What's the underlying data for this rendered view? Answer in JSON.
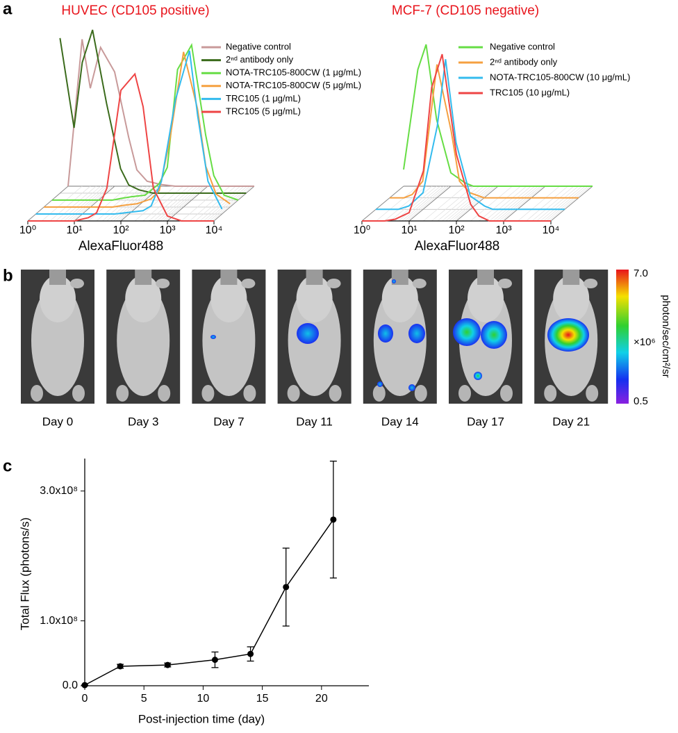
{
  "chart_data": [
    {
      "type": "waterfall",
      "panel": "a",
      "title": "HUVEC (CD105 positive)",
      "xlabel": "AlexaFluor488",
      "xscale": "log",
      "xlim": [
        1,
        10000
      ],
      "xticks": [
        {
          "value": 1,
          "label": "10⁰"
        },
        {
          "value": 10,
          "label": "10¹"
        },
        {
          "value": 100,
          "label": "10²"
        },
        {
          "value": 1000,
          "label": "10³"
        },
        {
          "value": 10000,
          "label": "10⁴"
        }
      ],
      "ylim": [
        0,
        100
      ],
      "x": [
        1,
        2,
        3,
        5,
        10,
        20,
        30,
        50,
        100,
        200,
        300,
        500,
        1000,
        2000,
        3000,
        5000,
        10000
      ],
      "series": [
        {
          "name": "Negative control",
          "color": "#c89a9a",
          "values": [
            0,
            90,
            60,
            85,
            70,
            30,
            10,
            3,
            1,
            0,
            0,
            0,
            0,
            0,
            0,
            0,
            0
          ]
        },
        {
          "name": "2ⁿᵈ antibody only",
          "color": "#3b6b1c",
          "values": [
            95,
            40,
            80,
            100,
            55,
            15,
            5,
            2,
            0,
            0,
            0,
            0,
            0,
            0,
            0,
            0,
            0
          ]
        },
        {
          "name": "NOTA-TRC105-800CW (1 μg/mL)",
          "color": "#66dd44",
          "values": [
            0,
            0,
            0,
            0,
            0,
            0,
            1,
            2,
            3,
            10,
            20,
            80,
            95,
            40,
            15,
            3,
            0
          ]
        },
        {
          "name": "NOTA-TRC105-800CW (5 μg/mL)",
          "color": "#f5a040",
          "values": [
            0,
            0,
            0,
            0,
            0,
            0,
            0,
            1,
            2,
            5,
            10,
            40,
            95,
            60,
            25,
            8,
            2
          ]
        },
        {
          "name": "TRC105 (1 μg/mL)",
          "color": "#33bbee",
          "values": [
            0,
            0,
            0,
            0,
            0,
            0,
            0,
            0,
            1,
            2,
            5,
            20,
            70,
            100,
            60,
            20,
            3
          ]
        },
        {
          "name": "TRC105 (5 μg/mL)",
          "color": "#ee4444",
          "values": [
            0,
            0,
            0,
            0,
            0,
            2,
            5,
            20,
            80,
            90,
            70,
            20,
            3,
            0,
            0,
            0,
            0
          ]
        }
      ]
    },
    {
      "type": "waterfall",
      "title": "MCF-7 (CD105 negative)",
      "xlabel": "AlexaFluor488",
      "xscale": "log",
      "xlim": [
        1,
        10000
      ],
      "xticks": [
        {
          "value": 1,
          "label": "10⁰"
        },
        {
          "value": 10,
          "label": "10¹"
        },
        {
          "value": 100,
          "label": "10²"
        },
        {
          "value": 1000,
          "label": "10³"
        },
        {
          "value": 10000,
          "label": "10⁴"
        }
      ],
      "ylim": [
        0,
        100
      ],
      "x": [
        1,
        2,
        3,
        5,
        10,
        20,
        30,
        50,
        100,
        200,
        300,
        500,
        1000,
        2000,
        3000,
        5000,
        10000
      ],
      "series": [
        {
          "name": "Negative control",
          "color": "#66dd44",
          "values": [
            10,
            70,
            85,
            40,
            8,
            2,
            0,
            0,
            0,
            0,
            0,
            0,
            0,
            0,
            0,
            0,
            0
          ]
        },
        {
          "name": "2ⁿᵈ antibody only",
          "color": "#f5a040",
          "values": [
            0,
            0,
            2,
            10,
            80,
            40,
            10,
            3,
            0,
            0,
            0,
            0,
            0,
            0,
            0,
            0,
            0
          ]
        },
        {
          "name": "NOTA-TRC105-800CW (10 μg/mL)",
          "color": "#33bbee",
          "values": [
            0,
            0,
            0,
            2,
            10,
            50,
            90,
            40,
            8,
            2,
            0,
            0,
            0,
            0,
            0,
            0,
            0
          ]
        },
        {
          "name": "TRC105 (10 μg/mL)",
          "color": "#ee4444",
          "values": [
            0,
            0,
            0,
            1,
            5,
            30,
            80,
            100,
            40,
            10,
            3,
            0,
            0,
            0,
            0,
            0,
            0
          ]
        }
      ]
    },
    {
      "type": "line",
      "panel": "c",
      "xlabel": "Post-injection time (day)",
      "ylabel": "Total Flux (photons/s)",
      "color": "#000000",
      "x": [
        0,
        3,
        7,
        11,
        14,
        17,
        21
      ],
      "values": [
        1000000,
        30000000,
        32000000,
        40000000,
        49000000,
        152000000,
        256000000
      ],
      "errors": [
        0,
        3000000,
        3000000,
        12000000,
        11000000,
        60000000,
        90000000
      ],
      "xlim": [
        0,
        24
      ],
      "xticks": [
        0,
        5,
        10,
        15,
        20
      ],
      "ylim": [
        0,
        350000000
      ],
      "yticks": [
        {
          "value": 0,
          "label": "0.0"
        },
        {
          "value": 100000000,
          "label": "1.0x10⁸"
        },
        {
          "value": 300000000,
          "label": "3.0x10⁸"
        }
      ]
    }
  ],
  "panel_b": {
    "label": "b",
    "days": [
      "Day 0",
      "Day 3",
      "Day 7",
      "Day 11",
      "Day 14",
      "Day 17",
      "Day 21"
    ],
    "colorbar": {
      "max_label": "7.0",
      "min_label": "0.5",
      "unit": "photon/sec/cm²/sr",
      "multiplier": "×10⁶"
    }
  }
}
